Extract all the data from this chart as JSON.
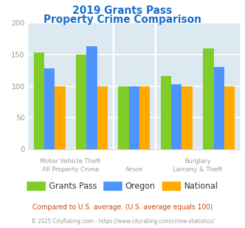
{
  "title_line1": "2019 Grants Pass",
  "title_line2": "Property Crime Comparison",
  "categories": [
    "All Property Crime",
    "Motor Vehicle Theft",
    "Arson",
    "Burglary",
    "Larceny & Theft"
  ],
  "series": {
    "Grants Pass": [
      153,
      150,
      100,
      116,
      160
    ],
    "Oregon": [
      128,
      163,
      100,
      103,
      130
    ],
    "National": [
      100,
      100,
      100,
      100,
      100
    ]
  },
  "colors": {
    "Grants Pass": "#80cc28",
    "Oregon": "#4d94ff",
    "National": "#ffaa00"
  },
  "ylim": [
    0,
    200
  ],
  "yticks": [
    0,
    50,
    100,
    150,
    200
  ],
  "plot_bg": "#dce9f0",
  "title_color": "#1a6dcc",
  "axis_label_color": "#999999",
  "legend_label_color": "#333333",
  "footnote1": "Compared to U.S. average. (U.S. average equals 100)",
  "footnote2": "© 2025 CityRating.com - https://www.cityrating.com/crime-statistics/",
  "footnote1_color": "#cc4400",
  "footnote2_color": "#999999",
  "dividers": [
    1.5,
    2.5
  ],
  "group_positions": [
    0,
    1,
    2,
    3,
    4
  ],
  "bar_width": 0.25
}
